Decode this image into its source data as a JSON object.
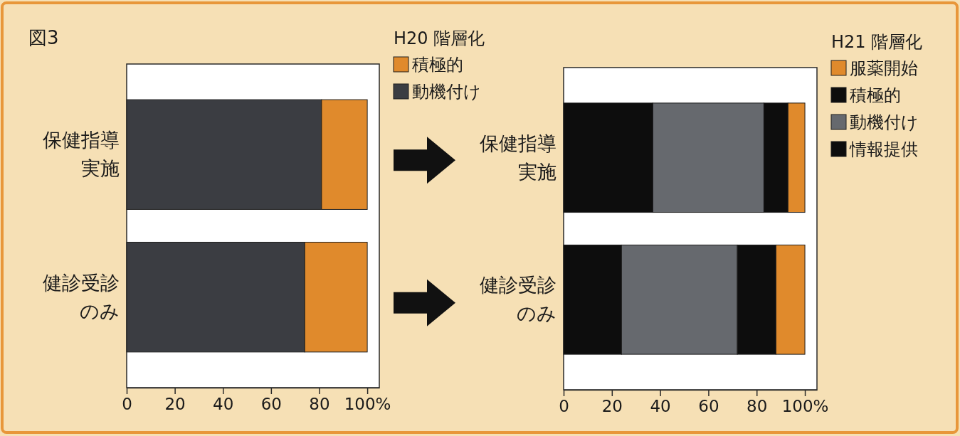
{
  "chart_data": [
    {
      "type": "bar",
      "orientation": "horizontal",
      "stacked": true,
      "annotations": [
        "図3"
      ],
      "legend_title": "H20 階層化",
      "legend": "top right",
      "categories": [
        "保健指導実施",
        "健診受診のみ"
      ],
      "series": [
        {
          "name": "動機付け",
          "color": "#3b3d42",
          "values": [
            81,
            74
          ]
        },
        {
          "name": "積極的",
          "color": "#e08a2c",
          "values": [
            19,
            26
          ]
        }
      ],
      "xlim": [
        0,
        105
      ],
      "xticks": [
        0,
        20,
        40,
        60,
        80,
        {
          "value": 100,
          "label": "100%"
        }
      ]
    },
    {
      "type": "bar",
      "orientation": "horizontal",
      "stacked": true,
      "legend_title": "H21 階層化",
      "legend": "top right",
      "categories": [
        "保健指導実施",
        "健診受診のみ"
      ],
      "series": [
        {
          "name": "情報提供",
          "color": "#0d0d0d",
          "values": [
            37,
            24
          ]
        },
        {
          "name": "動機付け",
          "color": "#66696e",
          "values": [
            46,
            48
          ]
        },
        {
          "name": "積極的",
          "color": "#0d0d0d",
          "values": [
            10,
            16
          ]
        },
        {
          "name": "服薬開始",
          "color": "#e08a2c",
          "values": [
            7,
            12
          ]
        }
      ],
      "xlim": [
        0,
        105
      ],
      "xticks": [
        0,
        20,
        40,
        60,
        80,
        {
          "value": 100,
          "label": "100%"
        }
      ]
    }
  ]
}
